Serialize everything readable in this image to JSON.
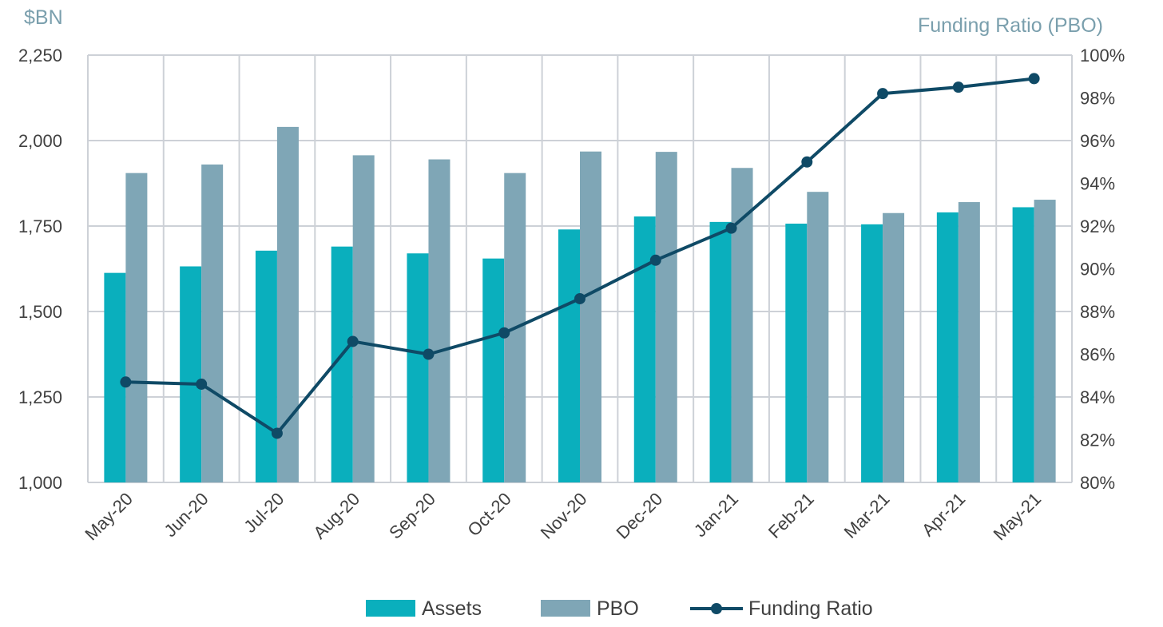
{
  "chart_data": {
    "type": "bar",
    "title": "",
    "ylabel": "$BN",
    "y2label": "Funding Ratio (PBO)",
    "categories": [
      "May-20",
      "Jun-20",
      "Jul-20",
      "Aug-20",
      "Sep-20",
      "Oct-20",
      "Nov-20",
      "Dec-20",
      "Jan-21",
      "Feb-21",
      "Mar-21",
      "Apr-21",
      "May-21"
    ],
    "ylim": [
      1000,
      2250
    ],
    "y_ticks": [
      "1,000",
      "1,250",
      "1,500",
      "1,750",
      "2,000",
      "2,250"
    ],
    "y2lim": [
      80,
      100
    ],
    "y2_ticks": [
      "80%",
      "82%",
      "84%",
      "86%",
      "88%",
      "90%",
      "92%",
      "94%",
      "96%",
      "98%",
      "100%"
    ],
    "grid": true,
    "legend_position": "bottom",
    "series": [
      {
        "name": "Assets",
        "type": "bar",
        "axis": "left",
        "color": "#0aafbd",
        "values": [
          1613,
          1632,
          1678,
          1690,
          1670,
          1655,
          1740,
          1778,
          1762,
          1757,
          1755,
          1790,
          1805
        ]
      },
      {
        "name": "PBO",
        "type": "bar",
        "axis": "left",
        "color": "#7fa6b6",
        "values": [
          1905,
          1930,
          2040,
          1957,
          1945,
          1905,
          1968,
          1967,
          1920,
          1850,
          1788,
          1820,
          1827
        ]
      },
      {
        "name": "Funding Ratio",
        "type": "line",
        "axis": "right",
        "color": "#0f4a66",
        "values": [
          84.7,
          84.6,
          82.3,
          86.6,
          86.0,
          87.0,
          88.6,
          90.4,
          91.9,
          95.0,
          98.2,
          98.5,
          98.9
        ]
      }
    ]
  }
}
